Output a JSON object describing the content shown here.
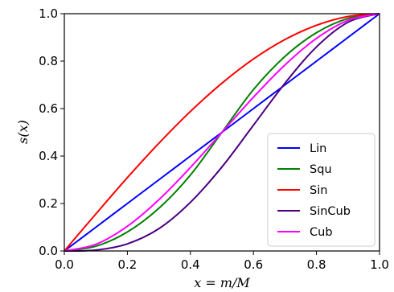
{
  "chart_data": {
    "type": "line",
    "title": "",
    "xlabel": "x = m/M",
    "ylabel": "s(x)",
    "xlim": [
      0,
      1
    ],
    "ylim": [
      0,
      1
    ],
    "xticks": [
      "0.0",
      "0.2",
      "0.4",
      "0.6",
      "0.8",
      "1.0"
    ],
    "yticks": [
      "0.0",
      "0.2",
      "0.4",
      "0.6",
      "0.8",
      "1.0"
    ],
    "grid": false,
    "legend_position": "lower right",
    "x": [
      0,
      0.1,
      0.2,
      0.3,
      0.4,
      0.5,
      0.6,
      0.7,
      0.8,
      0.9,
      1.0
    ],
    "series": [
      {
        "name": "Lin",
        "color": "#0000ff",
        "values": [
          0,
          0.1,
          0.2,
          0.3,
          0.4,
          0.5,
          0.6,
          0.7,
          0.8,
          0.9,
          1.0
        ]
      },
      {
        "name": "Squ",
        "color": "#008000",
        "values": [
          0,
          0.02,
          0.08,
          0.18,
          0.32,
          0.5,
          0.68,
          0.82,
          0.92,
          0.98,
          1.0
        ]
      },
      {
        "name": "Sin",
        "color": "#ff0000",
        "values": [
          0,
          0.156,
          0.309,
          0.454,
          0.588,
          0.707,
          0.809,
          0.891,
          0.951,
          0.988,
          1.0
        ]
      },
      {
        "name": "SinCub",
        "color": "#4b0082",
        "values": [
          0,
          0.004,
          0.03,
          0.094,
          0.205,
          0.354,
          0.53,
          0.707,
          0.86,
          0.964,
          1.0
        ]
      },
      {
        "name": "Cub",
        "color": "#ff00ff",
        "values": [
          0,
          0.028,
          0.104,
          0.216,
          0.352,
          0.5,
          0.648,
          0.784,
          0.896,
          0.972,
          1.0
        ]
      }
    ]
  }
}
